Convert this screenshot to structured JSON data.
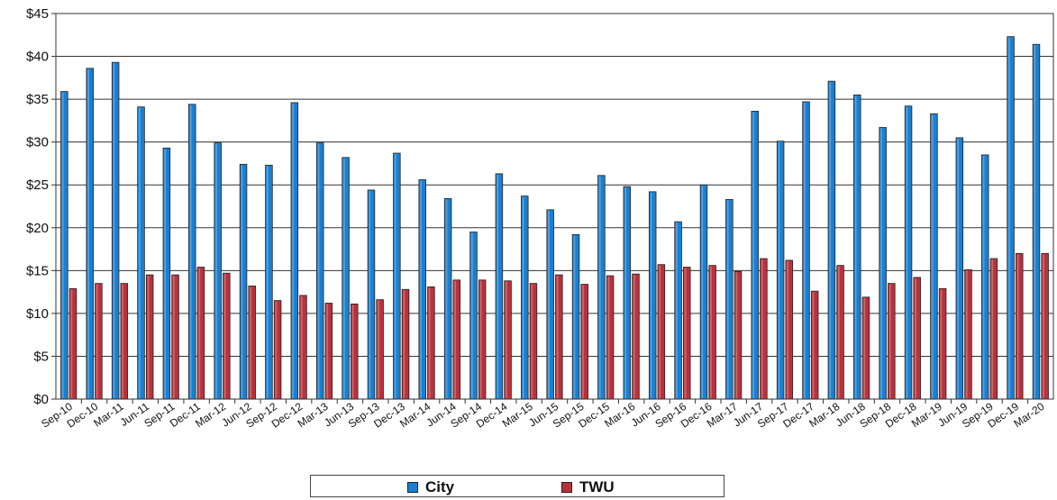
{
  "chart_data": {
    "type": "bar",
    "title": "",
    "xlabel": "",
    "ylabel": "",
    "ylim": [
      0,
      45
    ],
    "yticks": [
      "$0",
      "$5",
      "$10",
      "$15",
      "$20",
      "$25",
      "$30",
      "$35",
      "$40",
      "$45"
    ],
    "grid": true,
    "legend_position": "bottom",
    "categories": [
      "Sep-10",
      "Dec-10",
      "Mar-11",
      "Jun-11",
      "Sep-11",
      "Dec-11",
      "Mar-12",
      "Jun-12",
      "Sep-12",
      "Dec-12",
      "Mar-13",
      "Jun-13",
      "Sep-13",
      "Dec-13",
      "Mar-14",
      "Jun-14",
      "Sep-14",
      "Dec-14",
      "Mar-15",
      "Jun-15",
      "Sep-15",
      "Dec-15",
      "Mar-16",
      "Jun-16",
      "Sep-16",
      "Dec-16",
      "Mar-17",
      "Jun-17",
      "Sep-17",
      "Dec-17",
      "Mar-18",
      "Jun-18",
      "Sep-18",
      "Dec-18",
      "Mar-19",
      "Jun-19",
      "Sep-19",
      "Dec-19",
      "Mar-20"
    ],
    "series": [
      {
        "name": "City",
        "color": "#1b7fd1",
        "values": [
          35.9,
          38.6,
          39.3,
          34.1,
          29.3,
          34.4,
          29.9,
          27.4,
          27.3,
          34.6,
          29.9,
          28.2,
          24.4,
          28.7,
          25.6,
          23.4,
          19.5,
          26.3,
          23.7,
          22.1,
          19.2,
          26.1,
          24.8,
          24.2,
          20.7,
          25.0,
          23.3,
          33.6,
          30.1,
          34.7,
          37.1,
          35.5,
          31.7,
          34.2,
          33.3,
          30.5,
          28.5,
          42.3,
          41.4
        ]
      },
      {
        "name": "TWU",
        "color": "#b8323c",
        "values": [
          12.9,
          13.5,
          13.5,
          14.5,
          14.5,
          15.4,
          14.7,
          13.2,
          11.5,
          12.1,
          11.2,
          11.1,
          11.6,
          12.8,
          13.1,
          13.9,
          13.9,
          13.8,
          13.5,
          14.5,
          13.4,
          14.4,
          14.6,
          15.7,
          15.4,
          15.6,
          14.9,
          16.4,
          16.2,
          12.6,
          15.6,
          11.9,
          13.5,
          14.2,
          12.9,
          15.1,
          16.4,
          17.0,
          17.0
        ]
      }
    ]
  }
}
